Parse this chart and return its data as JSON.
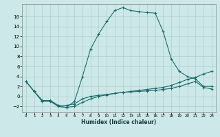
{
  "xlabel": "Humidex (Indice chaleur)",
  "bg_color": "#cde8e8",
  "grid_color": "#aecece",
  "line_color": "#1a6b6b",
  "xlim": [
    -0.5,
    23.5
  ],
  "ylim": [
    -3.2,
    18.5
  ],
  "xticks": [
    0,
    1,
    2,
    3,
    4,
    5,
    6,
    7,
    8,
    9,
    10,
    11,
    12,
    13,
    14,
    15,
    16,
    17,
    18,
    19,
    20,
    21,
    22,
    23
  ],
  "yticks": [
    -2,
    0,
    2,
    4,
    6,
    8,
    10,
    12,
    14,
    16
  ],
  "curve1_x": [
    0,
    1,
    2,
    3,
    4,
    5,
    6,
    7,
    8,
    9,
    10,
    11,
    12,
    13,
    14,
    15,
    16,
    17,
    18,
    19,
    20,
    21,
    22,
    23
  ],
  "curve1_y": [
    3,
    1,
    -1,
    -1,
    -2,
    -2.2,
    -1,
    4,
    9.5,
    12.5,
    15,
    17.2,
    17.8,
    17.2,
    17.0,
    16.8,
    16.7,
    13,
    7.5,
    5,
    4,
    3.5,
    2,
    2
  ],
  "curve2_x": [
    0,
    1,
    2,
    3,
    4,
    5,
    6,
    7,
    8,
    9,
    10,
    11,
    12,
    13,
    14,
    15,
    16,
    17,
    18,
    19,
    20,
    21,
    22,
    23
  ],
  "curve2_y": [
    3,
    1,
    -0.8,
    -0.8,
    -2,
    -2.2,
    -2,
    -1.2,
    -0.5,
    0,
    0.3,
    0.6,
    0.8,
    1.0,
    1.2,
    1.4,
    1.6,
    1.8,
    2.2,
    2.8,
    3.4,
    3.8,
    4.5,
    5.0
  ],
  "curve3_x": [
    0,
    1,
    2,
    3,
    4,
    5,
    6,
    7,
    8,
    9,
    10,
    11,
    12,
    13,
    14,
    15,
    16,
    17,
    18,
    19,
    20,
    21,
    22,
    23
  ],
  "curve3_y": [
    3,
    1,
    -0.8,
    -0.8,
    -1.8,
    -1.8,
    -1.5,
    -0.5,
    0.0,
    0.2,
    0.4,
    0.6,
    0.8,
    0.9,
    1.0,
    1.1,
    1.2,
    1.4,
    1.6,
    2.0,
    2.5,
    3.0,
    1.8,
    1.5
  ]
}
